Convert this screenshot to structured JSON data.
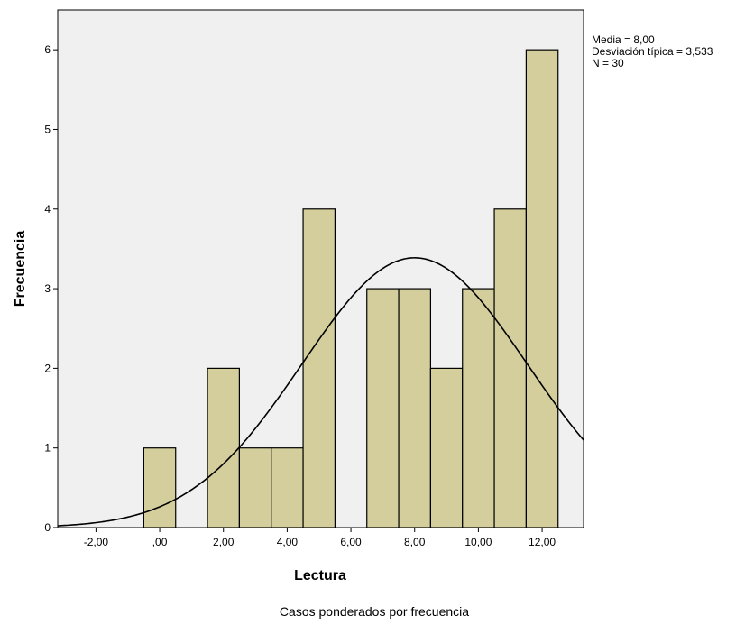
{
  "chart_data": {
    "type": "bar",
    "subtype": "histogram",
    "bins": [
      {
        "center": 0,
        "count": 1
      },
      {
        "center": 1,
        "count": 0
      },
      {
        "center": 2,
        "count": 2
      },
      {
        "center": 3,
        "count": 1
      },
      {
        "center": 4,
        "count": 1
      },
      {
        "center": 5,
        "count": 4
      },
      {
        "center": 6,
        "count": 0
      },
      {
        "center": 7,
        "count": 3
      },
      {
        "center": 8,
        "count": 3
      },
      {
        "center": 9,
        "count": 2
      },
      {
        "center": 10,
        "count": 3
      },
      {
        "center": 11,
        "count": 4
      },
      {
        "center": 12,
        "count": 6
      }
    ],
    "bin_width": 1,
    "normal_curve": {
      "mean": 8.0,
      "sd": 3.533,
      "n": 30
    },
    "xlabel": "Lectura",
    "ylabel": "Frecuencia",
    "xlim": [
      -3.2,
      13.3
    ],
    "ylim": [
      0,
      6.5
    ],
    "x_ticks": [
      {
        "value": -2,
        "label": "-2,00"
      },
      {
        "value": 0,
        "label": ",00"
      },
      {
        "value": 2,
        "label": "2,00"
      },
      {
        "value": 4,
        "label": "4,00"
      },
      {
        "value": 6,
        "label": "6,00"
      },
      {
        "value": 8,
        "label": "8,00"
      },
      {
        "value": 10,
        "label": "10,00"
      },
      {
        "value": 12,
        "label": "12,00"
      }
    ],
    "y_ticks": [
      {
        "value": 0,
        "label": "0"
      },
      {
        "value": 1,
        "label": "1"
      },
      {
        "value": 2,
        "label": "2"
      },
      {
        "value": 3,
        "label": "3"
      },
      {
        "value": 4,
        "label": "4"
      },
      {
        "value": 5,
        "label": "5"
      },
      {
        "value": 6,
        "label": "6"
      }
    ],
    "stats_text": [
      "Media = 8,00",
      "Desviación típica = 3,533",
      "N = 30"
    ],
    "footer": "Casos ponderados por frecuencia",
    "grid": false,
    "legend": "right",
    "colors": {
      "plot_bg": "#f0f0f0",
      "bar_fill": "#d3ce9b",
      "bar_stroke": "#000000",
      "curve": "#000000"
    }
  }
}
